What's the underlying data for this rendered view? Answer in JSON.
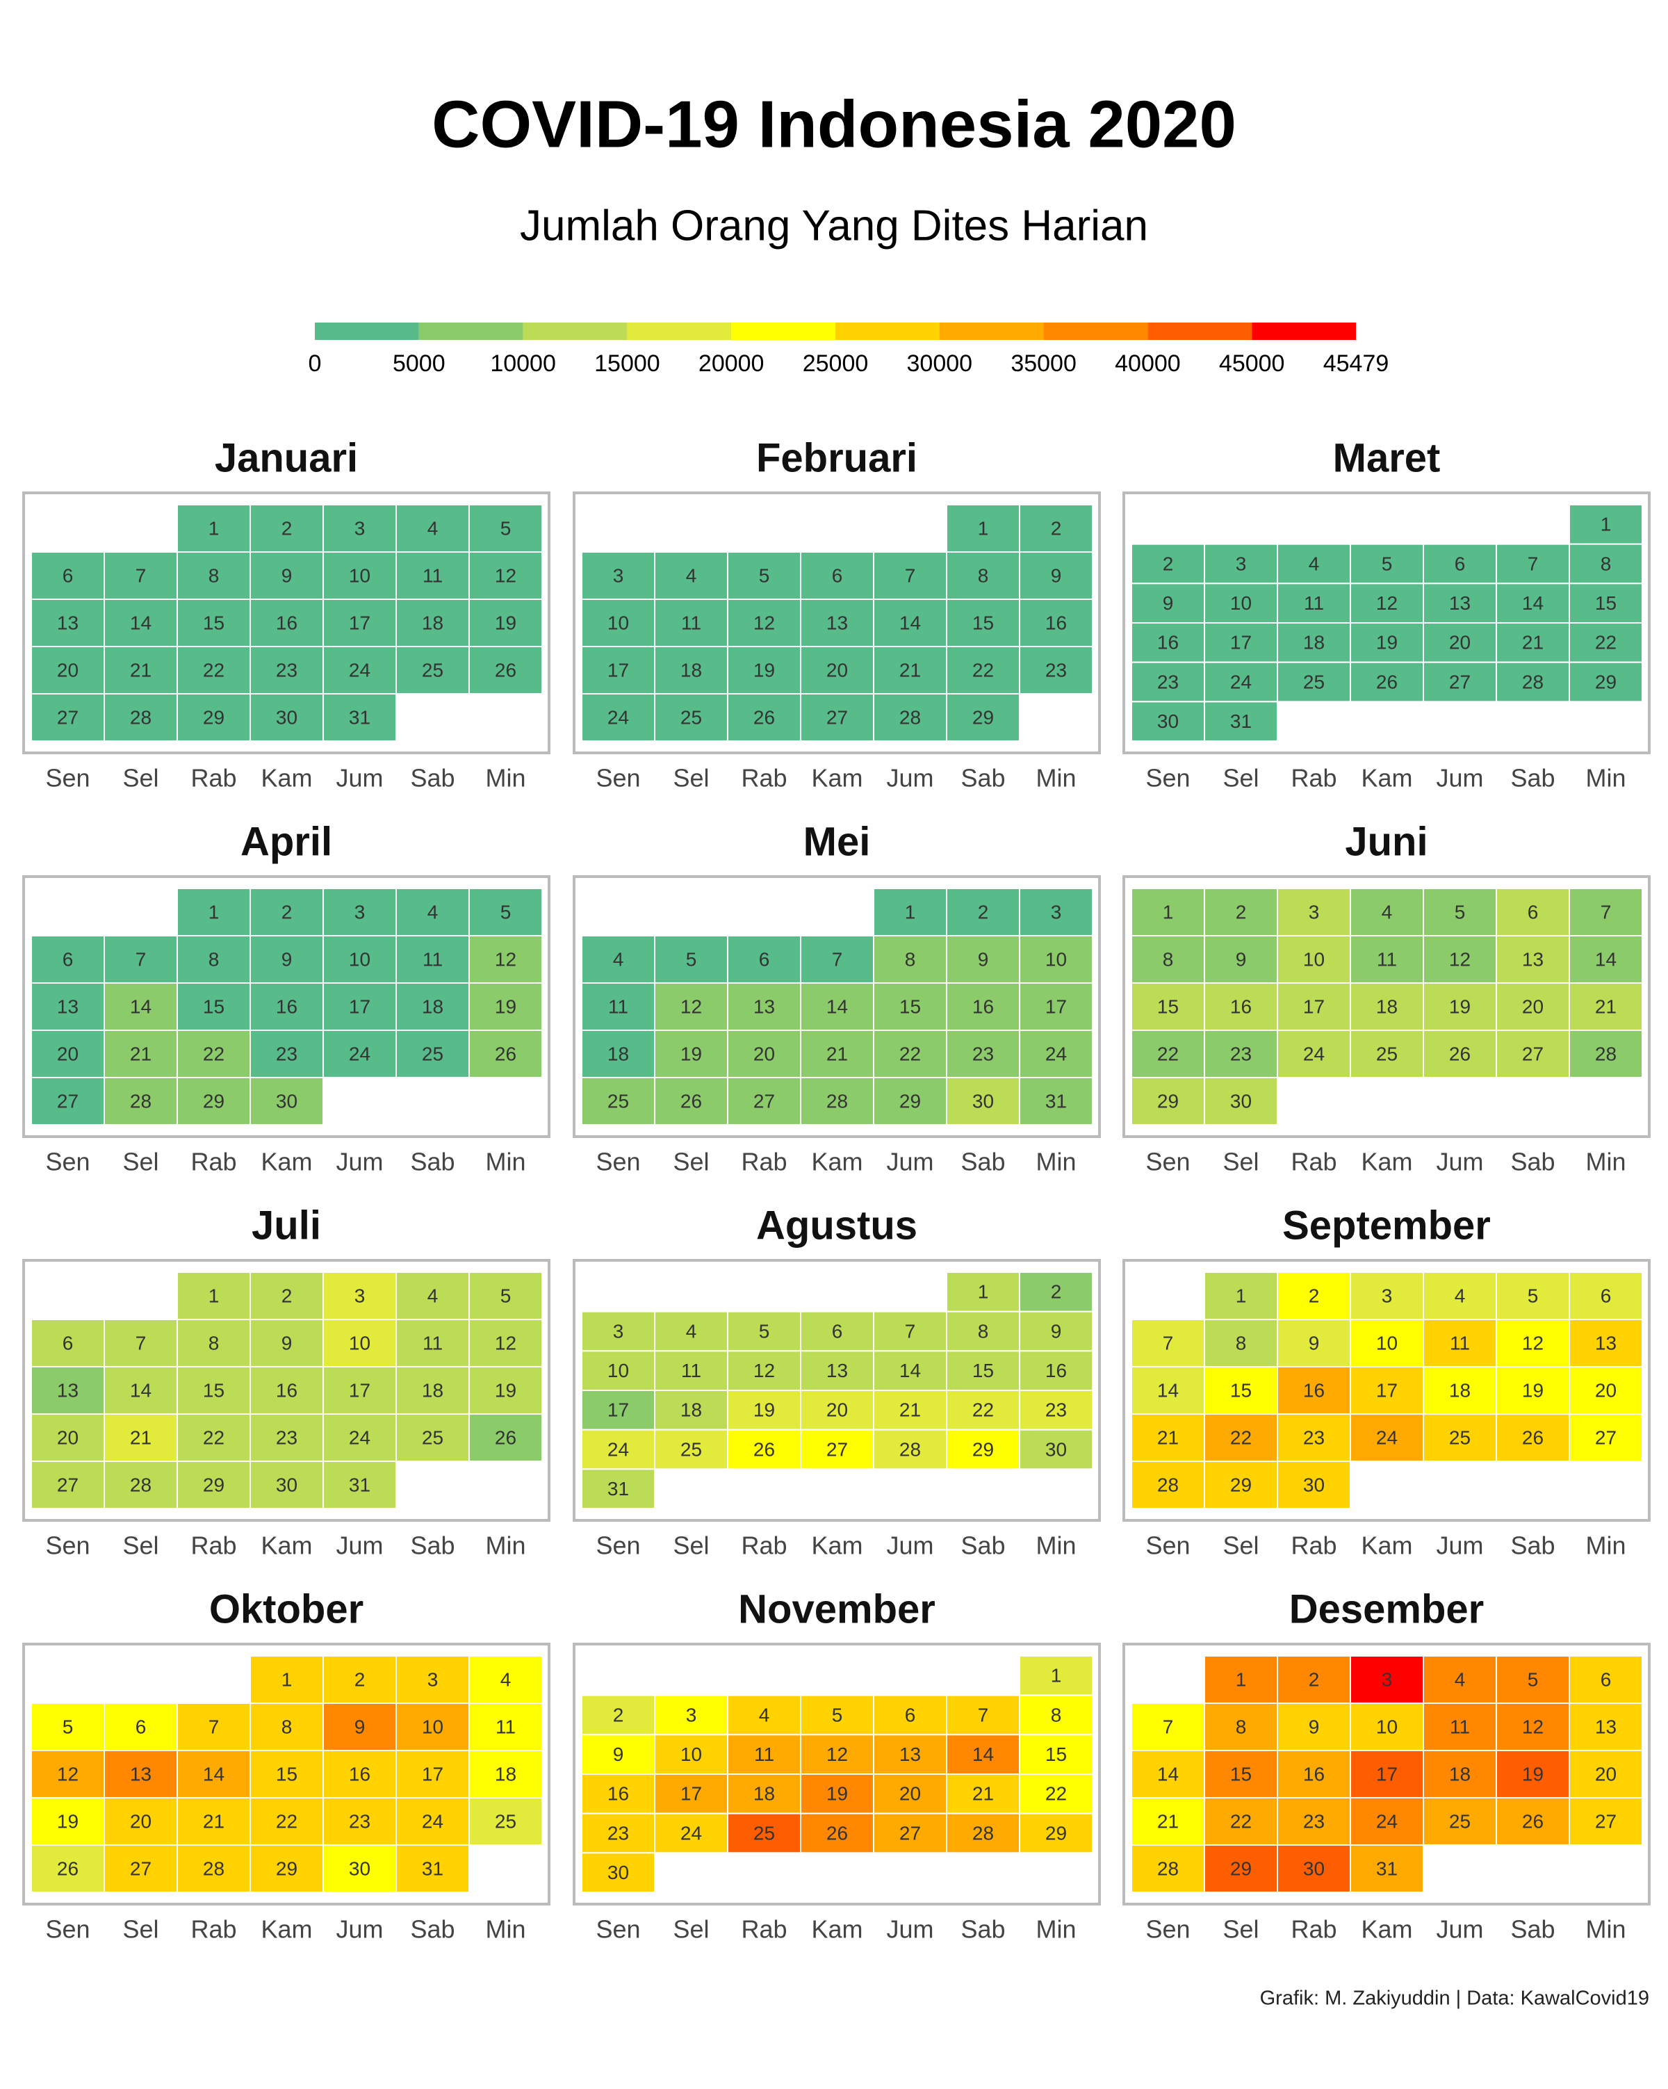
{
  "chart_data": {
    "type": "calendar",
    "title": "COVID-19 Indonesia 2020",
    "subtitle": "Jumlah Orang Yang Dites Harian",
    "caption": "Grafik: M. Zakiyuddin | Data: KawalCovid19",
    "weekdays": [
      "Sen",
      "Sel",
      "Rab",
      "Kam",
      "Jum",
      "Sab",
      "Min"
    ],
    "colorbar": {
      "ticks": [
        0,
        5000,
        10000,
        15000,
        20000,
        25000,
        30000,
        35000,
        40000,
        45000,
        45479
      ],
      "colors": [
        "#57bb8a",
        "#8ccb6a",
        "#bcdc55",
        "#e2ea3b",
        "#ffff00",
        "#ffd200",
        "#ffaa00",
        "#ff8800",
        "#ff5e00",
        "#ff0000"
      ]
    },
    "months": [
      {
        "name": "Januari",
        "days": [
          1,
          2,
          3,
          4,
          5,
          6,
          7,
          8,
          9,
          10,
          11,
          12,
          13,
          14,
          15,
          16,
          17,
          18,
          19,
          20,
          21,
          22,
          23,
          24,
          25,
          26,
          27,
          28,
          29,
          30,
          31
        ],
        "values": [
          0,
          0,
          0,
          0,
          0,
          0,
          0,
          0,
          0,
          0,
          0,
          0,
          0,
          0,
          0,
          0,
          0,
          0,
          0,
          0,
          0,
          0,
          0,
          0,
          0,
          0,
          0,
          0,
          0,
          0,
          0
        ]
      },
      {
        "name": "Februari",
        "days": [
          1,
          2,
          3,
          4,
          5,
          6,
          7,
          8,
          9,
          10,
          11,
          12,
          13,
          14,
          15,
          16,
          17,
          18,
          19,
          20,
          21,
          22,
          23,
          24,
          25,
          26,
          27,
          28,
          29
        ],
        "values": [
          0,
          0,
          0,
          0,
          0,
          0,
          0,
          0,
          0,
          0,
          0,
          0,
          0,
          0,
          0,
          0,
          0,
          0,
          0,
          0,
          0,
          0,
          0,
          0,
          0,
          0,
          0,
          0,
          0
        ]
      },
      {
        "name": "Maret",
        "days": [
          1,
          2,
          3,
          4,
          5,
          6,
          7,
          8,
          9,
          10,
          11,
          12,
          13,
          14,
          15,
          16,
          17,
          18,
          19,
          20,
          21,
          22,
          23,
          24,
          25,
          26,
          27,
          28,
          29,
          30,
          31
        ],
        "values": [
          0,
          0,
          50,
          60,
          80,
          90,
          100,
          120,
          130,
          150,
          160,
          180,
          200,
          250,
          280,
          300,
          350,
          400,
          450,
          500,
          550,
          600,
          700,
          800,
          900,
          1000,
          1100,
          1200,
          1300,
          1400,
          1500
        ]
      },
      {
        "name": "April",
        "days": [
          1,
          2,
          3,
          4,
          5,
          6,
          7,
          8,
          9,
          10,
          11,
          12,
          13,
          14,
          15,
          16,
          17,
          18,
          19,
          20,
          21,
          22,
          23,
          24,
          25,
          26,
          27,
          28,
          29,
          30
        ],
        "values": [
          1000,
          1200,
          1500,
          1800,
          2000,
          2200,
          2400,
          2600,
          2800,
          3000,
          4000,
          7000,
          3500,
          5500,
          4000,
          4500,
          4000,
          4500,
          6000,
          4500,
          5200,
          5500,
          4800,
          4500,
          4800,
          6000,
          4900,
          5500,
          6500,
          6000
        ]
      },
      {
        "name": "Mei",
        "days": [
          1,
          2,
          3,
          4,
          5,
          6,
          7,
          8,
          9,
          10,
          11,
          12,
          13,
          14,
          15,
          16,
          17,
          18,
          19,
          20,
          21,
          22,
          23,
          24,
          25,
          26,
          27,
          28,
          29,
          30,
          31
        ],
        "values": [
          4800,
          4500,
          4600,
          4700,
          4900,
          4600,
          4500,
          5500,
          5200,
          5600,
          4900,
          5800,
          5400,
          5200,
          6000,
          5300,
          5500,
          4900,
          6200,
          6000,
          5800,
          6500,
          6200,
          6800,
          5500,
          6800,
          7000,
          6500,
          5200,
          11000,
          7500
        ]
      },
      {
        "name": "Juni",
        "days": [
          1,
          2,
          3,
          4,
          5,
          6,
          7,
          8,
          9,
          10,
          11,
          12,
          13,
          14,
          15,
          16,
          17,
          18,
          19,
          20,
          21,
          22,
          23,
          24,
          25,
          26,
          27,
          28,
          29,
          30
        ],
        "values": [
          8000,
          8500,
          11000,
          8500,
          9000,
          11000,
          8000,
          9000,
          9500,
          11500,
          9000,
          9500,
          11000,
          9500,
          11500,
          12000,
          12000,
          11500,
          12000,
          11500,
          11500,
          9500,
          9500,
          12000,
          12500,
          12000,
          11500,
          9000,
          10500,
          12500
        ]
      },
      {
        "name": "Juli",
        "days": [
          1,
          2,
          3,
          4,
          5,
          6,
          7,
          8,
          9,
          10,
          11,
          12,
          13,
          14,
          15,
          16,
          17,
          18,
          19,
          20,
          21,
          22,
          23,
          24,
          25,
          26,
          27,
          28,
          29,
          30,
          31
        ],
        "values": [
          12000,
          12500,
          15500,
          10500,
          10000,
          12000,
          11500,
          12500,
          12000,
          15500,
          12500,
          12000,
          9500,
          12500,
          13000,
          12500,
          13500,
          12500,
          10500,
          13000,
          15500,
          13500,
          12500,
          13000,
          12000,
          9500,
          12500,
          13500,
          14000,
          13500,
          12000
        ]
      },
      {
        "name": "Agustus",
        "days": [
          1,
          2,
          3,
          4,
          5,
          6,
          7,
          8,
          9,
          10,
          11,
          12,
          13,
          14,
          15,
          16,
          17,
          18,
          19,
          20,
          21,
          22,
          23,
          24,
          25,
          26,
          27,
          28,
          29,
          30,
          31
        ],
        "values": [
          11500,
          9500,
          13000,
          13500,
          14000,
          13000,
          13500,
          12000,
          11500,
          13500,
          13000,
          14000,
          13500,
          14500,
          13000,
          11000,
          9000,
          14500,
          16500,
          16500,
          16000,
          17000,
          16000,
          17500,
          18000,
          20500,
          20500,
          17500,
          20500,
          12500,
          12000
        ]
      },
      {
        "name": "September",
        "days": [
          1,
          2,
          3,
          4,
          5,
          6,
          7,
          8,
          9,
          10,
          11,
          12,
          13,
          14,
          15,
          16,
          17,
          18,
          19,
          20,
          21,
          22,
          23,
          24,
          25,
          26,
          27,
          28,
          29,
          30
        ],
        "values": [
          14500,
          21000,
          17000,
          17000,
          17000,
          16000,
          17500,
          14000,
          16000,
          22000,
          26000,
          24000,
          26000,
          18000,
          22000,
          31000,
          29000,
          24500,
          24000,
          24000,
          26000,
          30000,
          27000,
          31000,
          26500,
          26500,
          24000,
          26000,
          25500,
          28000
        ]
      },
      {
        "name": "Oktober",
        "days": [
          1,
          2,
          3,
          4,
          5,
          6,
          7,
          8,
          9,
          10,
          11,
          12,
          13,
          14,
          15,
          16,
          17,
          18,
          19,
          20,
          21,
          22,
          23,
          24,
          25,
          26,
          27,
          28,
          29,
          30,
          31
        ],
        "values": [
          27000,
          26000,
          27000,
          22000,
          22000,
          24000,
          29000,
          28000,
          36000,
          30000,
          21000,
          31000,
          36000,
          33000,
          28000,
          26000,
          25000,
          21000,
          24000,
          26000,
          25500,
          29000,
          26000,
          25500,
          19000,
          19000,
          25500,
          26500,
          26000,
          21000,
          26500
        ]
      },
      {
        "name": "November",
        "days": [
          1,
          2,
          3,
          4,
          5,
          6,
          7,
          8,
          9,
          10,
          11,
          12,
          13,
          14,
          15,
          16,
          17,
          18,
          19,
          20,
          21,
          22,
          23,
          24,
          25,
          26,
          27,
          28,
          29,
          30
        ],
        "values": [
          19000,
          19000,
          21000,
          27000,
          28000,
          26500,
          26000,
          21000,
          22000,
          29000,
          32000,
          31000,
          30000,
          35500,
          23000,
          27000,
          31000,
          33000,
          36000,
          31000,
          27000,
          23000,
          27000,
          25500,
          40500,
          35000,
          33000,
          30500,
          27000,
          29000
        ]
      },
      {
        "name": "Desember",
        "days": [
          1,
          2,
          3,
          4,
          5,
          6,
          7,
          8,
          9,
          10,
          11,
          12,
          13,
          14,
          15,
          16,
          17,
          18,
          19,
          20,
          21,
          22,
          23,
          24,
          25,
          26,
          27,
          28,
          29,
          30,
          31
        ],
        "values": [
          38000,
          37000,
          45479,
          35500,
          36000,
          26000,
          21000,
          31000,
          28000,
          29000,
          38000,
          36000,
          25000,
          26000,
          35500,
          33000,
          40500,
          37000,
          41000,
          26000,
          23000,
          30000,
          31000,
          36500,
          30500,
          31000,
          26000,
          27000,
          40500,
          41500,
          33000
        ]
      }
    ]
  }
}
